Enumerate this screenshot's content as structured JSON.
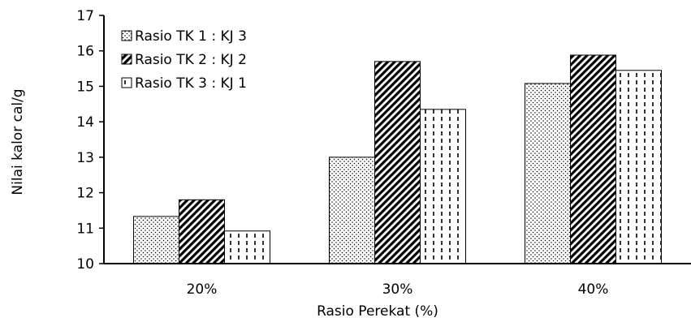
{
  "chart_data": {
    "type": "bar",
    "title": "",
    "xlabel": "Rasio Perekat (%)",
    "ylabel": "Nilai kalor cal/g",
    "categories": [
      "20%",
      "30%",
      "40%"
    ],
    "ylim": [
      10,
      17
    ],
    "yticks": [
      "10",
      "11",
      "12",
      "13",
      "14",
      "15",
      "16",
      "17"
    ],
    "legend_position": "top-left",
    "grid": false,
    "series": [
      {
        "name": "Rasio TK 1 : KJ 3",
        "values": [
          11.33,
          13.0,
          15.08
        ],
        "pattern": "dots"
      },
      {
        "name": "Rasio TK 2 : KJ 2",
        "values": [
          11.8,
          15.7,
          15.88
        ],
        "pattern": "diagonal-stripes"
      },
      {
        "name": "Rasio TK 3 : KJ 1",
        "values": [
          10.92,
          14.35,
          15.45
        ],
        "pattern": "vertical-dashes"
      }
    ]
  }
}
